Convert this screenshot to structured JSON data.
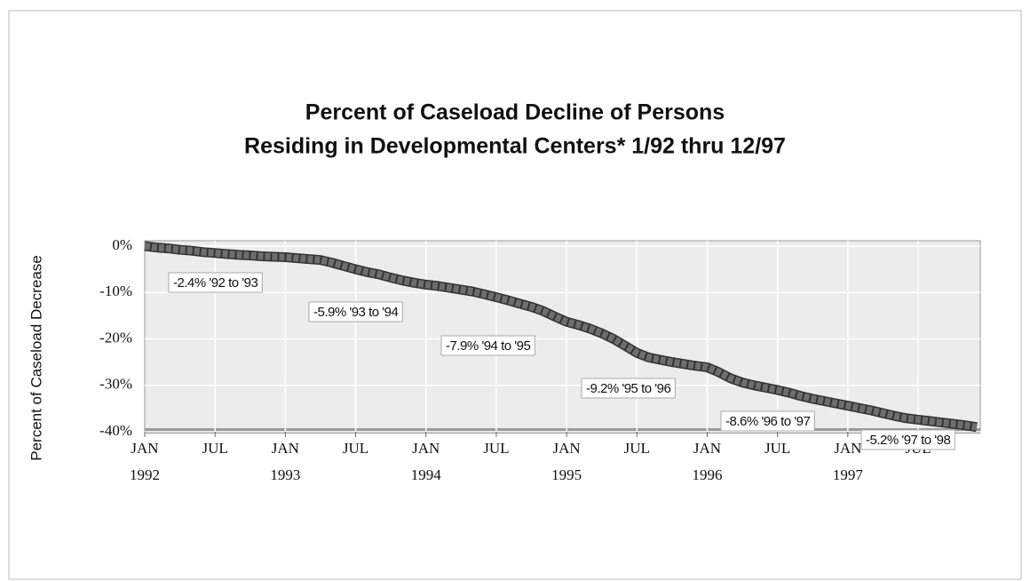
{
  "chart_data": {
    "type": "line",
    "title": [
      "Percent of Caseload Decline of Persons",
      "Residing in Developmental Centers* 1/92 thru 12/97"
    ],
    "y_label": "Percent of Caseload Decrease",
    "categories": [
      "JAN 1992",
      null,
      null,
      null,
      null,
      null,
      "JUL",
      null,
      null,
      null,
      null,
      null,
      "JAN 1993",
      null,
      null,
      null,
      null,
      null,
      "JUL",
      null,
      null,
      null,
      null,
      null,
      "JAN 1994",
      null,
      null,
      null,
      null,
      null,
      "JUL",
      null,
      null,
      null,
      null,
      null,
      "JAN 1995",
      null,
      null,
      null,
      null,
      null,
      "JUL",
      null,
      null,
      null,
      null,
      null,
      "JAN 1996",
      null,
      null,
      null,
      null,
      null,
      "JUL",
      null,
      null,
      null,
      null,
      null,
      "JAN 1997",
      null,
      null,
      null,
      null,
      null,
      "JUL",
      null,
      null,
      null,
      null,
      null
    ],
    "values": [
      0,
      -0.3,
      -0.5,
      -0.8,
      -1.0,
      -1.3,
      -1.5,
      -1.7,
      -1.9,
      -2.0,
      -2.2,
      -2.3,
      -2.4,
      -2.6,
      -2.8,
      -3.0,
      -3.6,
      -4.3,
      -5.0,
      -5.6,
      -6.1,
      -6.8,
      -7.4,
      -7.9,
      -8.3,
      -8.6,
      -9.0,
      -9.4,
      -9.8,
      -10.4,
      -11.0,
      -11.7,
      -12.4,
      -13.1,
      -14.0,
      -15.2,
      -16.3,
      -17.0,
      -17.8,
      -18.8,
      -20.0,
      -21.5,
      -23.0,
      -24.0,
      -24.5,
      -25.0,
      -25.4,
      -25.8,
      -26.1,
      -27.2,
      -28.5,
      -29.4,
      -30.0,
      -30.5,
      -31.0,
      -31.6,
      -32.3,
      -32.9,
      -33.4,
      -33.9,
      -34.4,
      -34.9,
      -35.4,
      -36.0,
      -36.6,
      -37.1,
      -37.4,
      -37.7,
      -38.0,
      -38.3,
      -38.6,
      -39.0
    ],
    "color": "#6e6e6e",
    "ylim": [
      -40,
      0
    ],
    "yticks": [
      {
        "value": 0,
        "label": "0%"
      },
      {
        "value": -10,
        "label": "-10%"
      },
      {
        "value": -20,
        "label": "-20%"
      },
      {
        "value": -30,
        "label": "-30%"
      },
      {
        "value": -40,
        "label": "-40%"
      }
    ],
    "grid": true,
    "annotations": [
      "-2.4% '92 to '93",
      "-5.9% '93 to '94",
      "-7.9% '94 to '95",
      "-9.2% '95 to '96",
      "-8.6% '96 to '97",
      "-5.2% '97 to '98"
    ]
  }
}
